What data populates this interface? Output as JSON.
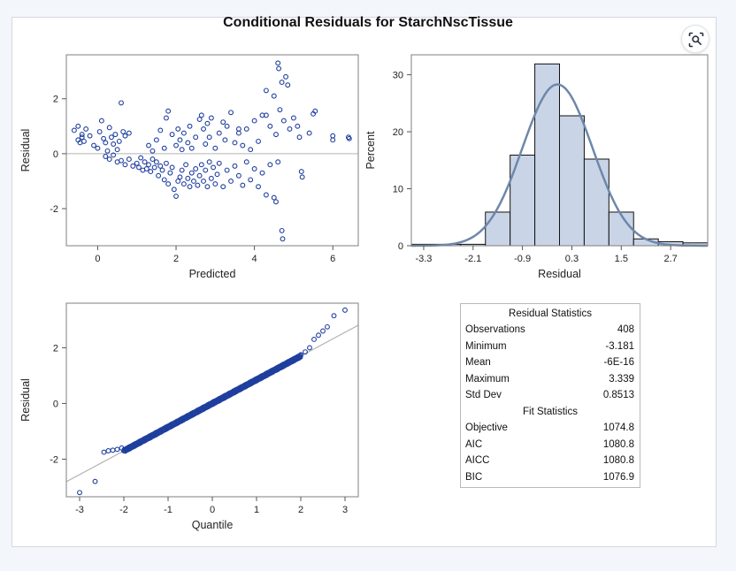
{
  "title": "Conditional Residuals for StarchNscTissue",
  "lens_icon": "image-search-icon",
  "colors": {
    "marker": "#1f3f9e",
    "curve": "#6e87ab",
    "bar_fill": "#c9d5e6",
    "ref_line": "#b5b5b5"
  },
  "chart_data": [
    {
      "type": "scatter",
      "xlabel": "Predicted",
      "ylabel": "Residual",
      "xlim": [
        -0.8,
        6.65
      ],
      "ylim": [
        -3.35,
        3.6
      ],
      "xticks": [
        0,
        2,
        4,
        6
      ],
      "yticks": [
        -2,
        0,
        2
      ],
      "reference_line_y": 0,
      "points": [
        [
          -0.6,
          0.85
        ],
        [
          -0.5,
          0.5
        ],
        [
          -0.45,
          0.4
        ],
        [
          -0.4,
          0.7
        ],
        [
          -0.35,
          0.45
        ],
        [
          -0.3,
          0.9
        ],
        [
          -0.5,
          1.0
        ],
        [
          -0.4,
          0.6
        ],
        [
          -0.2,
          0.65
        ],
        [
          -0.1,
          0.3
        ],
        [
          0.0,
          0.2
        ],
        [
          0.05,
          0.8
        ],
        [
          0.1,
          1.2
        ],
        [
          0.15,
          0.55
        ],
        [
          0.2,
          0.4
        ],
        [
          0.25,
          0.1
        ],
        [
          0.3,
          0.95
        ],
        [
          0.35,
          0.6
        ],
        [
          0.4,
          0.35
        ],
        [
          0.45,
          0.7
        ],
        [
          0.5,
          0.15
        ],
        [
          0.55,
          0.45
        ],
        [
          0.6,
          1.85
        ],
        [
          0.65,
          0.8
        ],
        [
          0.7,
          0.65
        ],
        [
          0.8,
          0.75
        ],
        [
          0.2,
          -0.1
        ],
        [
          0.3,
          -0.2
        ],
        [
          0.4,
          -0.05
        ],
        [
          0.5,
          -0.3
        ],
        [
          0.6,
          -0.25
        ],
        [
          0.7,
          -0.4
        ],
        [
          0.8,
          -0.2
        ],
        [
          0.9,
          -0.45
        ],
        [
          1.0,
          -0.35
        ],
        [
          1.05,
          -0.5
        ],
        [
          1.1,
          -0.15
        ],
        [
          1.15,
          -0.6
        ],
        [
          1.2,
          -0.3
        ],
        [
          1.25,
          -0.55
        ],
        [
          1.3,
          -0.4
        ],
        [
          1.35,
          -0.65
        ],
        [
          1.4,
          -0.2
        ],
        [
          1.45,
          -0.5
        ],
        [
          1.5,
          -0.3
        ],
        [
          1.55,
          -0.8
        ],
        [
          1.6,
          -0.45
        ],
        [
          1.65,
          -0.6
        ],
        [
          1.7,
          -0.95
        ],
        [
          1.75,
          -0.35
        ],
        [
          1.8,
          -1.1
        ],
        [
          1.85,
          -0.7
        ],
        [
          1.9,
          -0.5
        ],
        [
          1.95,
          -1.3
        ],
        [
          2.0,
          -1.55
        ],
        [
          2.05,
          -1.0
        ],
        [
          2.1,
          -0.85
        ],
        [
          2.15,
          -0.6
        ],
        [
          2.2,
          -1.1
        ],
        [
          2.25,
          -0.4
        ],
        [
          2.3,
          -0.9
        ],
        [
          2.35,
          -1.2
        ],
        [
          2.4,
          -0.7
        ],
        [
          2.45,
          -1.0
        ],
        [
          2.5,
          -0.55
        ],
        [
          2.55,
          -1.15
        ],
        [
          2.6,
          -0.8
        ],
        [
          2.65,
          -0.4
        ],
        [
          2.7,
          -1.0
        ],
        [
          2.75,
          -0.6
        ],
        [
          2.8,
          -1.2
        ],
        [
          2.85,
          -0.3
        ],
        [
          2.9,
          -0.9
        ],
        [
          2.95,
          -0.5
        ],
        [
          3.0,
          -1.1
        ],
        [
          3.05,
          -0.75
        ],
        [
          3.1,
          -0.35
        ],
        [
          3.2,
          -1.2
        ],
        [
          3.3,
          -0.6
        ],
        [
          3.4,
          -1.0
        ],
        [
          3.5,
          -0.45
        ],
        [
          3.6,
          -0.8
        ],
        [
          3.7,
          -1.15
        ],
        [
          3.8,
          -0.3
        ],
        [
          3.9,
          -0.95
        ],
        [
          4.0,
          -0.55
        ],
        [
          4.1,
          -1.2
        ],
        [
          4.2,
          -0.7
        ],
        [
          4.3,
          -1.5
        ],
        [
          4.4,
          -0.4
        ],
        [
          4.5,
          -1.6
        ],
        [
          4.55,
          -1.75
        ],
        [
          4.6,
          -0.3
        ],
        [
          4.7,
          -2.8
        ],
        [
          4.72,
          -3.1
        ],
        [
          1.3,
          0.3
        ],
        [
          1.4,
          0.1
        ],
        [
          1.5,
          0.5
        ],
        [
          1.6,
          0.85
        ],
        [
          1.7,
          0.2
        ],
        [
          1.75,
          1.3
        ],
        [
          1.8,
          1.55
        ],
        [
          1.9,
          0.7
        ],
        [
          2.0,
          0.3
        ],
        [
          2.05,
          0.9
        ],
        [
          2.1,
          0.5
        ],
        [
          2.15,
          0.15
        ],
        [
          2.2,
          0.75
        ],
        [
          2.3,
          0.4
        ],
        [
          2.35,
          1.0
        ],
        [
          2.4,
          0.2
        ],
        [
          2.5,
          0.6
        ],
        [
          2.6,
          1.25
        ],
        [
          2.65,
          1.4
        ],
        [
          2.7,
          0.9
        ],
        [
          2.75,
          0.35
        ],
        [
          2.8,
          1.1
        ],
        [
          2.85,
          0.6
        ],
        [
          2.9,
          1.3
        ],
        [
          3.0,
          0.2
        ],
        [
          3.1,
          0.75
        ],
        [
          3.2,
          1.15
        ],
        [
          3.25,
          0.5
        ],
        [
          3.3,
          1.0
        ],
        [
          3.4,
          1.5
        ],
        [
          3.5,
          0.4
        ],
        [
          3.6,
          0.75
        ],
        [
          3.7,
          0.3
        ],
        [
          3.8,
          0.9
        ],
        [
          3.9,
          0.15
        ],
        [
          4.0,
          1.2
        ],
        [
          4.1,
          0.45
        ],
        [
          4.2,
          1.4
        ],
        [
          4.3,
          2.3
        ],
        [
          4.4,
          1.0
        ],
        [
          4.5,
          2.1
        ],
        [
          4.55,
          0.7
        ],
        [
          4.6,
          3.3
        ],
        [
          4.62,
          3.1
        ],
        [
          4.65,
          1.6
        ],
        [
          4.7,
          2.6
        ],
        [
          4.75,
          1.2
        ],
        [
          4.8,
          2.8
        ],
        [
          4.85,
          2.5
        ],
        [
          4.9,
          0.9
        ],
        [
          5.0,
          1.3
        ],
        [
          5.1,
          1.0
        ],
        [
          5.15,
          0.6
        ],
        [
          5.2,
          -0.65
        ],
        [
          5.22,
          -0.85
        ],
        [
          5.4,
          0.75
        ],
        [
          5.5,
          1.45
        ],
        [
          5.55,
          1.55
        ],
        [
          6.0,
          0.65
        ],
        [
          6.0,
          0.5
        ],
        [
          6.4,
          0.6
        ],
        [
          6.42,
          0.55
        ],
        [
          4.3,
          1.4
        ],
        [
          3.6,
          0.9
        ]
      ]
    },
    {
      "type": "bar",
      "xlabel": "Residual",
      "ylabel": "Percent",
      "xlim": [
        -3.6,
        3.6
      ],
      "ylim": [
        0,
        33.5
      ],
      "xticks": [
        -3.3,
        -2.1,
        -0.9,
        0.3,
        1.5,
        2.7
      ],
      "xtick_labels": [
        "-3.3",
        "-2.1",
        "-0.9",
        "0.3",
        "1.5",
        "2.7"
      ],
      "yticks": [
        0,
        10,
        20,
        30
      ],
      "bin_edges": [
        -3.6,
        -2.4,
        -1.8,
        -1.2,
        -0.6,
        0.0,
        0.6,
        1.2,
        1.8,
        2.4,
        3.0,
        3.6
      ],
      "values": [
        0.25,
        0.25,
        5.9,
        15.9,
        31.9,
        22.8,
        15.2,
        5.9,
        1.2,
        0.7,
        0.5
      ],
      "density_curve": {
        "mean": -0.05,
        "sd": 0.8513,
        "scale_percent": 28.3
      }
    },
    {
      "type": "scatter",
      "xlabel": "Quantile",
      "ylabel": "Residual",
      "xlim": [
        -3.3,
        3.3
      ],
      "ylim": [
        -3.35,
        3.6
      ],
      "xticks": [
        -3,
        -2,
        -1,
        0,
        1,
        2,
        3
      ],
      "yticks": [
        -2,
        0,
        2
      ],
      "reference_line": {
        "intercept": 0,
        "slope": 0.8513
      },
      "tail_points": [
        [
          -3.0,
          -3.2
        ],
        [
          -2.65,
          -2.8
        ],
        [
          -2.45,
          -1.75
        ],
        [
          -2.35,
          -1.7
        ],
        [
          -2.25,
          -1.68
        ],
        [
          -2.15,
          -1.65
        ],
        [
          -2.05,
          -1.6
        ],
        [
          2.0,
          1.75
        ],
        [
          2.1,
          1.85
        ],
        [
          2.2,
          2.0
        ],
        [
          2.3,
          2.3
        ],
        [
          2.4,
          2.45
        ],
        [
          2.5,
          2.6
        ],
        [
          2.6,
          2.75
        ],
        [
          2.75,
          3.15
        ],
        [
          3.0,
          3.35
        ]
      ],
      "n_points": 408
    },
    {
      "type": "table",
      "title": "Residual Statistics",
      "rows": [
        {
          "label": "Observations",
          "value": "408"
        },
        {
          "label": "Minimum",
          "value": "-3.181"
        },
        {
          "label": "Mean",
          "value": "-6E-16"
        },
        {
          "label": "Maximum",
          "value": "3.339"
        },
        {
          "label": "Std Dev",
          "value": "0.8513"
        }
      ],
      "fit_title": "Fit Statistics",
      "fit_rows": [
        {
          "label": "Objective",
          "value": "1074.8"
        },
        {
          "label": "AIC",
          "value": "1080.8"
        },
        {
          "label": "AICC",
          "value": "1080.8"
        },
        {
          "label": "BIC",
          "value": "1076.9"
        }
      ]
    }
  ]
}
